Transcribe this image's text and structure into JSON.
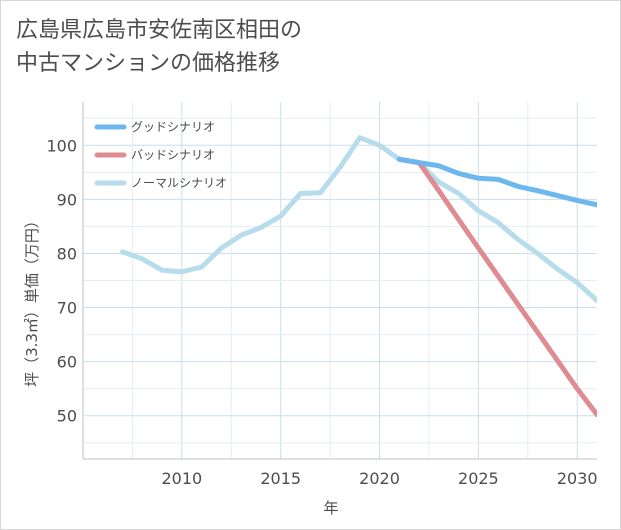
{
  "chart_data": {
    "type": "line",
    "title": "広島県広島市安佐南区相田の\n中古マンションの価格推移",
    "xlabel": "年",
    "ylabel": "坪（3.3㎡）単価（万円）",
    "xlim": [
      2005,
      2031
    ],
    "ylim": [
      42,
      108
    ],
    "x_ticks": [
      2010,
      2015,
      2020,
      2025,
      2030
    ],
    "y_ticks": [
      50,
      60,
      70,
      80,
      90,
      100
    ],
    "grid": true,
    "legend_position": "top-left",
    "series": [
      {
        "name": "グッドシナリオ",
        "color": "#6cb8ee",
        "x": [
          2021,
          2022,
          2023,
          2024,
          2025,
          2026,
          2027,
          2028,
          2029,
          2030,
          2031
        ],
        "y": [
          97.4,
          96.8,
          96.2,
          94.8,
          93.9,
          93.7,
          92.4,
          91.6,
          90.7,
          89.8,
          89.0
        ]
      },
      {
        "name": "バッドシナリオ",
        "color": "#de8c92",
        "x": [
          2021,
          2022,
          2023,
          2024,
          2025,
          2026,
          2027,
          2028,
          2029,
          2030,
          2031
        ],
        "y": [
          97.4,
          96.8,
          91.6,
          86.3,
          81.0,
          75.8,
          70.6,
          65.4,
          60.2,
          55.0,
          50.2
        ]
      },
      {
        "name": "ノーマルシナリオ",
        "color": "#b7dcec",
        "x": [
          2007,
          2008,
          2009,
          2010,
          2011,
          2012,
          2013,
          2014,
          2015,
          2016,
          2017,
          2018,
          2019,
          2020,
          2021,
          2022,
          2023,
          2024,
          2025,
          2026,
          2027,
          2028,
          2029,
          2030,
          2031
        ],
        "y": [
          80.3,
          79.0,
          76.9,
          76.6,
          77.5,
          81.0,
          83.4,
          84.8,
          86.9,
          91.1,
          91.2,
          95.9,
          101.4,
          100.0,
          97.4,
          96.8,
          93.2,
          91.1,
          87.9,
          85.7,
          82.6,
          80.0,
          77.1,
          74.6,
          71.3
        ]
      }
    ]
  }
}
